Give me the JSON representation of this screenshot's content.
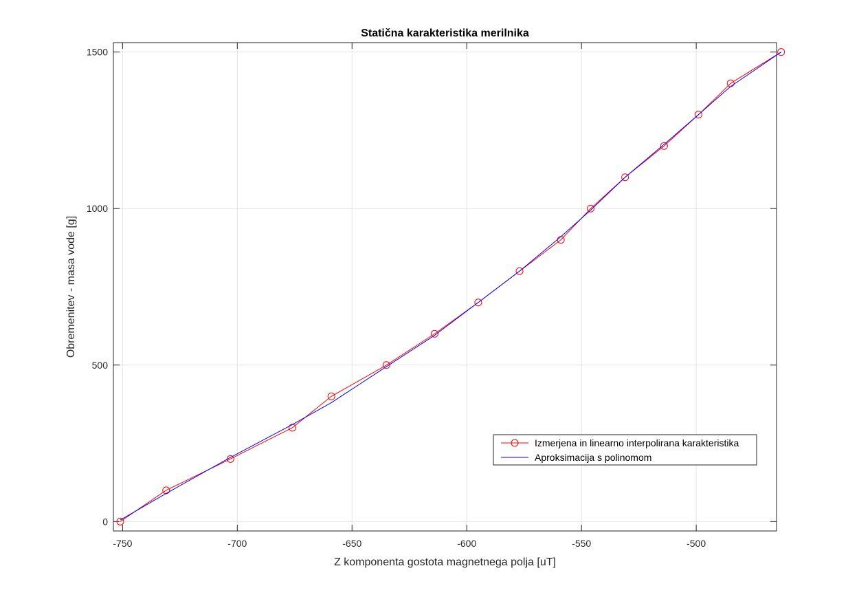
{
  "chart_data": {
    "type": "line",
    "title": "Statična karakteristika merilnika",
    "xlabel": "Z komponenta gostota magnetnega polja [uT]",
    "ylabel": "Obremenitev - masa vode [g]",
    "xlim": [
      -754,
      -465
    ],
    "ylim": [
      -30,
      1530
    ],
    "xticks": [
      -750,
      -700,
      -650,
      -600,
      -550,
      -500
    ],
    "yticks": [
      0,
      500,
      1000,
      1500
    ],
    "grid": true,
    "legend": "lower-right",
    "series": [
      {
        "name": "Izmerjena in linearno interpolirana karakteristika",
        "color": "#ff0000",
        "marker": "circle",
        "x": [
          -751,
          -731,
          -703,
          -676,
          -659,
          -635,
          -614,
          -595,
          -577,
          -559,
          -546,
          -531,
          -514,
          -499,
          -485,
          -463
        ],
        "y": [
          0,
          100,
          200,
          300,
          400,
          500,
          600,
          700,
          800,
          900,
          1000,
          1100,
          1200,
          1300,
          1400,
          1500
        ]
      },
      {
        "name": "Aproksimacija s polinomom",
        "color": "#0000ff",
        "marker": "none",
        "x": [
          -751,
          -731,
          -703,
          -676,
          -659,
          -635,
          -614,
          -595,
          -577,
          -559,
          -546,
          -531,
          -514,
          -499,
          -485,
          -463
        ],
        "y": [
          5,
          90,
          205,
          310,
          380,
          495,
          595,
          700,
          800,
          910,
          995,
          1100,
          1205,
          1300,
          1390,
          1500
        ]
      }
    ]
  }
}
